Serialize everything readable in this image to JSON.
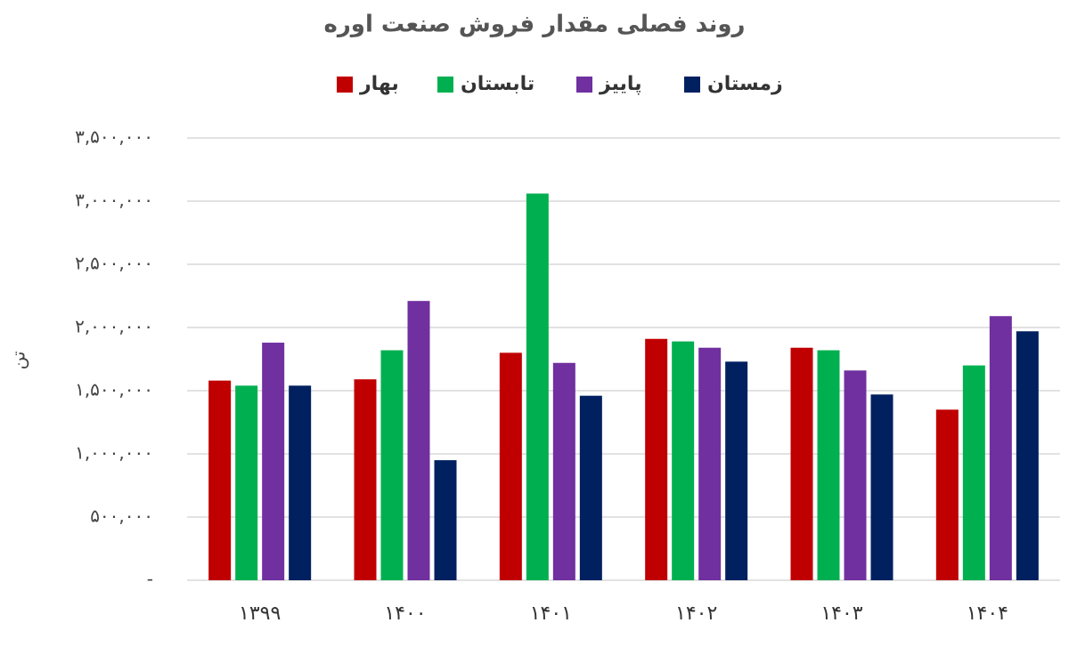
{
  "chart_data": {
    "type": "bar",
    "title": "روند فصلی مقدار فروش صنعت اوره",
    "y_label": "تن",
    "categories": [
      "۱۳۹۹",
      "۱۴۰۰",
      "۱۴۰۱",
      "۱۴۰۲",
      "۱۴۰۳",
      "۱۴۰۴"
    ],
    "series": [
      {
        "name": "بهار",
        "color": "#c00000",
        "values": [
          1580000,
          1590000,
          1800000,
          1910000,
          1840000,
          1350000
        ]
      },
      {
        "name": "تابستان",
        "color": "#00b050",
        "values": [
          1540000,
          1820000,
          3060000,
          1890000,
          1820000,
          1700000
        ]
      },
      {
        "name": "پاییز",
        "color": "#7030a0",
        "values": [
          1880000,
          2210000,
          1720000,
          1840000,
          1660000,
          2090000
        ]
      },
      {
        "name": "زمستان",
        "color": "#002060",
        "values": [
          1540000,
          950000,
          1460000,
          1730000,
          1470000,
          1970000
        ]
      }
    ],
    "ylim": [
      0,
      3500000
    ],
    "yticks": [
      {
        "value": 0,
        "label": "-"
      },
      {
        "value": 500000,
        "label": "۵۰۰,۰۰۰"
      },
      {
        "value": 1000000,
        "label": "۱,۰۰۰,۰۰۰"
      },
      {
        "value": 1500000,
        "label": "۱,۵۰۰,۰۰۰"
      },
      {
        "value": 2000000,
        "label": "۲,۰۰۰,۰۰۰"
      },
      {
        "value": 2500000,
        "label": "۲,۵۰۰,۰۰۰"
      },
      {
        "value": 3000000,
        "label": "۳,۰۰۰,۰۰۰"
      },
      {
        "value": 3500000,
        "label": "۳,۵۰۰,۰۰۰"
      }
    ],
    "grid": true
  }
}
